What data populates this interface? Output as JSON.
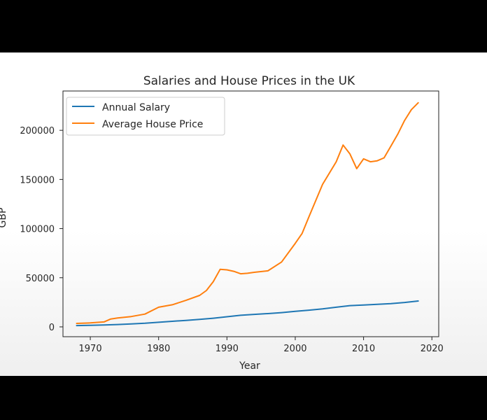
{
  "chart_data": {
    "type": "line",
    "title": "Salaries and House Prices in the UK",
    "xlabel": "Year",
    "ylabel": "GBP",
    "xlim": [
      1966,
      2021
    ],
    "ylim": [
      -10000,
      240000
    ],
    "x_ticks": [
      1970,
      1980,
      1990,
      2000,
      2010,
      2020
    ],
    "y_ticks": [
      0,
      50000,
      100000,
      150000,
      200000
    ],
    "grid": false,
    "legend_position": "top-left",
    "series": [
      {
        "name": "Annual Salary",
        "color": "#1f77b4",
        "x": [
          1968,
          1970,
          1972,
          1974,
          1976,
          1978,
          1980,
          1982,
          1984,
          1986,
          1988,
          1990,
          1992,
          1994,
          1996,
          1998,
          2000,
          2002,
          2004,
          2006,
          2008,
          2010,
          2012,
          2014,
          2016,
          2018
        ],
        "y": [
          1300,
          1600,
          1900,
          2400,
          3000,
          3700,
          4700,
          5700,
          6600,
          7600,
          8800,
          10300,
          11800,
          12700,
          13500,
          14500,
          15800,
          17000,
          18300,
          20000,
          21600,
          22200,
          23000,
          23700,
          24800,
          26300
        ]
      },
      {
        "name": "Average House Price",
        "color": "#ff7f0e",
        "x": [
          1968,
          1970,
          1972,
          1973,
          1974,
          1976,
          1978,
          1980,
          1982,
          1984,
          1986,
          1987,
          1988,
          1989,
          1990,
          1991,
          1992,
          1993,
          1994,
          1996,
          1998,
          2000,
          2001,
          2002,
          2004,
          2006,
          2007,
          2008,
          2009,
          2010,
          2011,
          2012,
          2013,
          2014,
          2015,
          2016,
          2017,
          2018
        ],
        "y": [
          3500,
          4000,
          5000,
          8000,
          9000,
          10500,
          13000,
          20000,
          22500,
          27000,
          32000,
          37000,
          46000,
          58500,
          58000,
          56500,
          54000,
          54500,
          55500,
          57000,
          66000,
          85000,
          95000,
          112000,
          145000,
          168000,
          185000,
          176000,
          161000,
          171000,
          168000,
          169000,
          172000,
          184000,
          196000,
          210000,
          221000,
          228000
        ]
      }
    ]
  }
}
